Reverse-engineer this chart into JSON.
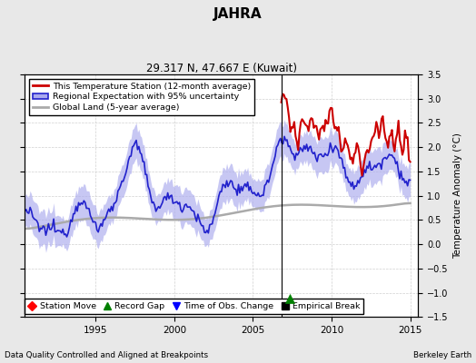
{
  "title": "JAHRA",
  "subtitle": "29.317 N, 47.667 E (Kuwait)",
  "ylabel": "Temperature Anomaly (°C)",
  "xlabel_left": "Data Quality Controlled and Aligned at Breakpoints",
  "xlabel_right": "Berkeley Earth",
  "ylim": [
    -1.5,
    3.5
  ],
  "xlim": [
    1990.5,
    2015.5
  ],
  "yticks": [
    -1.5,
    -1.0,
    -0.5,
    0.0,
    0.5,
    1.0,
    1.5,
    2.0,
    2.5,
    3.0,
    3.5
  ],
  "xticks": [
    1995,
    2000,
    2005,
    2010,
    2015
  ],
  "bg_color": "#e8e8e8",
  "plot_bg_color": "#ffffff",
  "red_color": "#cc0000",
  "blue_color": "#2222cc",
  "blue_fill_color": "#aaaaee",
  "gray_color": "#aaaaaa",
  "divider_x": 2006.8,
  "record_gap_x": 2007.35,
  "legend_labels": [
    "This Temperature Station (12-month average)",
    "Regional Expectation with 95% uncertainty",
    "Global Land (5-year average)"
  ],
  "bottom_legend_labels": [
    "Station Move",
    "Record Gap",
    "Time of Obs. Change",
    "Empirical Break"
  ]
}
